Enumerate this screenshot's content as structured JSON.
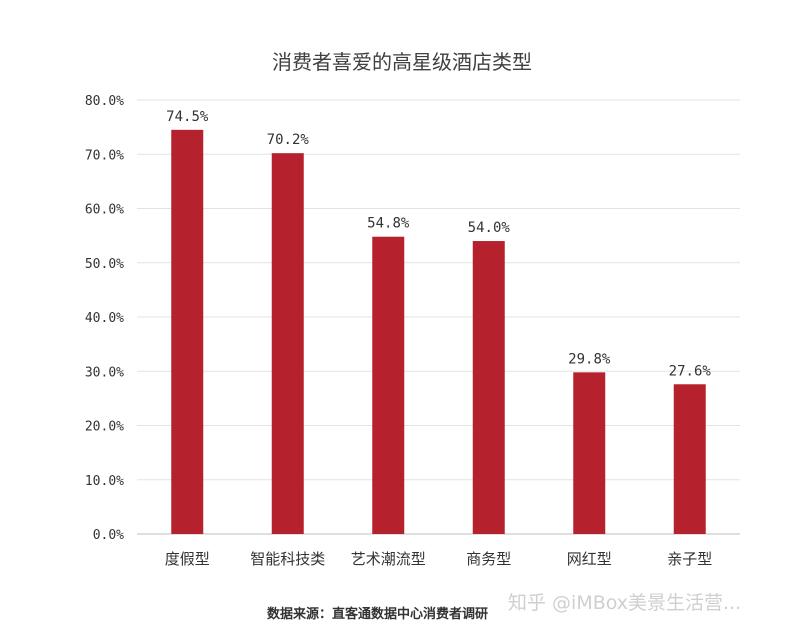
{
  "chart_data": {
    "type": "bar",
    "title": "消费者喜爱的高星级酒店类型",
    "categories": [
      "度假型",
      "智能科技类",
      "艺术潮流型",
      "商务型",
      "网红型",
      "亲子型"
    ],
    "values": [
      74.5,
      70.2,
      54.8,
      54.0,
      29.8,
      27.6
    ],
    "value_labels": [
      "74.5%",
      "70.2%",
      "54.8%",
      "54.0%",
      "29.8%",
      "27.6%"
    ],
    "y_ticks": [
      "0.0%",
      "10.0%",
      "20.0%",
      "30.0%",
      "40.0%",
      "50.0%",
      "60.0%",
      "70.0%",
      "80.0%"
    ],
    "ylim": [
      0,
      80
    ],
    "grid": true,
    "bar_color": "#b5222d",
    "xlabel": "",
    "ylabel": ""
  },
  "source_text": "数据来源：直客通数据中心消费者调研",
  "watermark": "知乎 @iMBox美景生活营..."
}
